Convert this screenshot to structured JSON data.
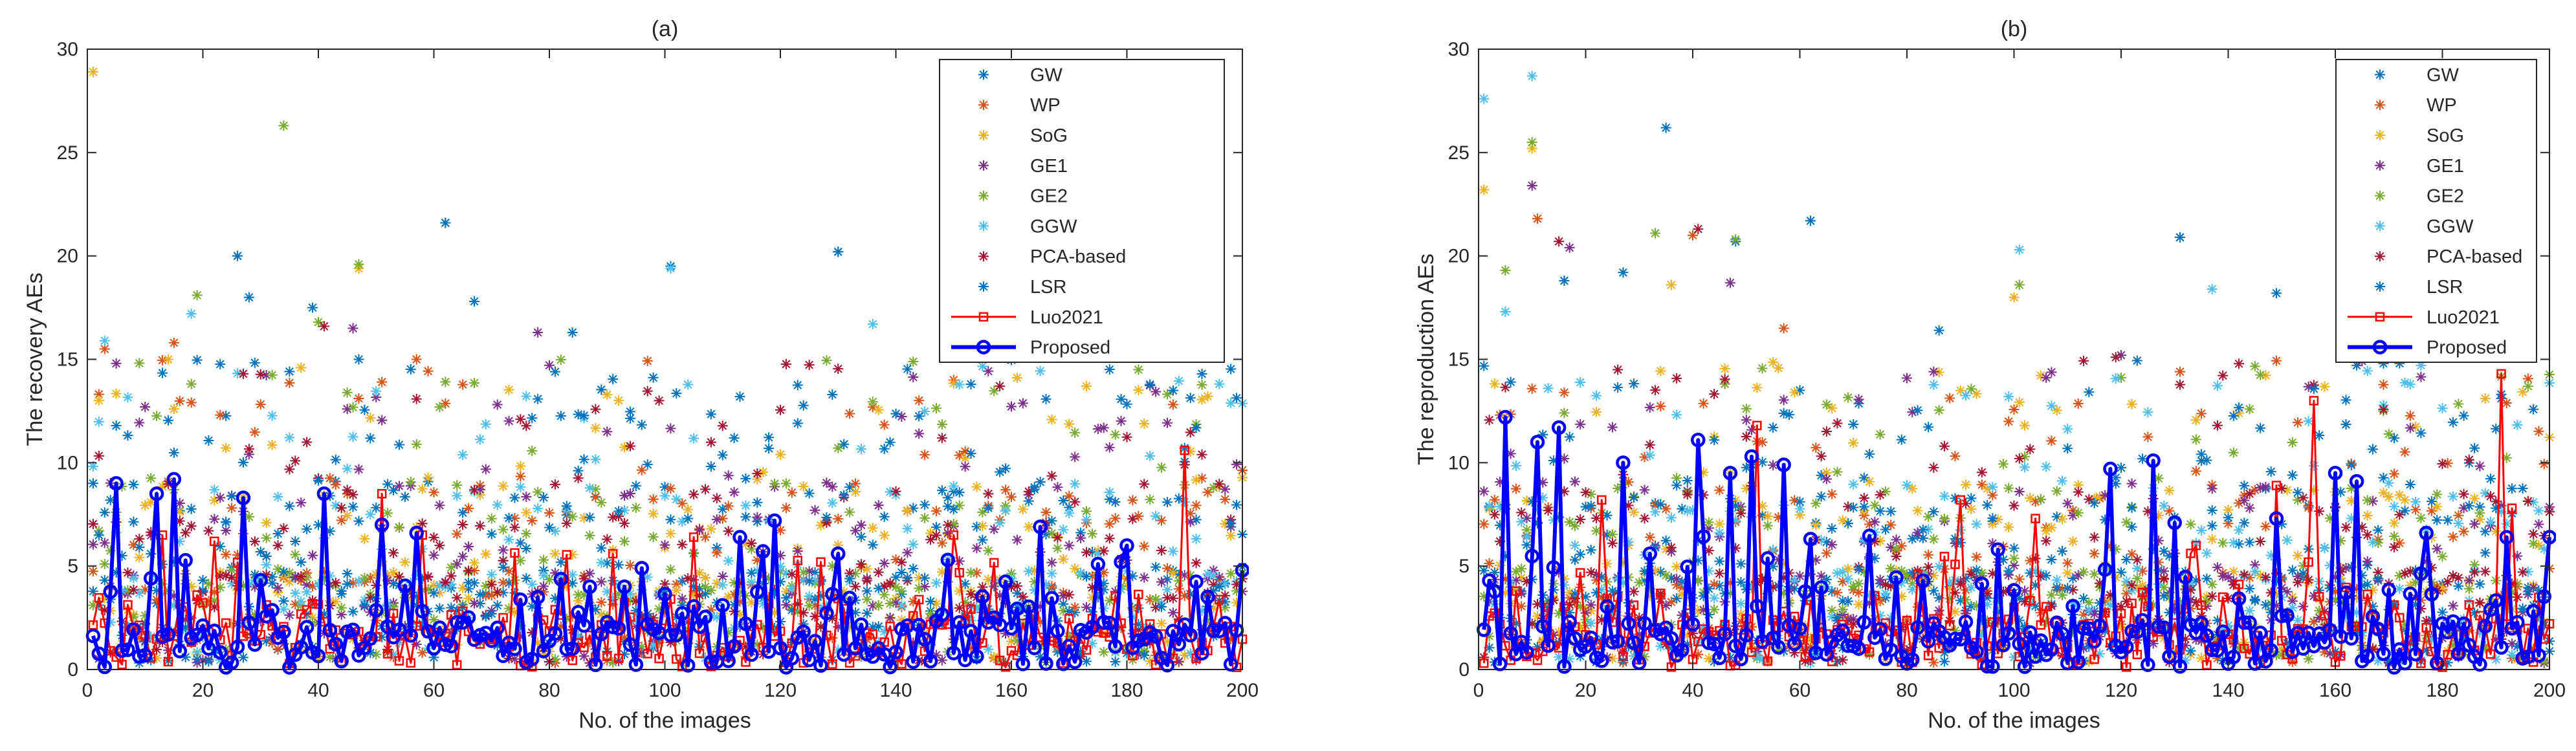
{
  "chart_data": [
    {
      "type": "scatter",
      "title": "(a)",
      "xlabel": "No. of the images",
      "ylabel": "The recovery AEs",
      "xlim": [
        0,
        200
      ],
      "ylim": [
        0,
        30
      ],
      "xticks": [
        0,
        20,
        40,
        60,
        80,
        100,
        120,
        140,
        160,
        180,
        200
      ],
      "yticks": [
        0,
        5,
        10,
        15,
        20,
        25,
        30
      ],
      "legend_position": "top-right",
      "scatter_series": [
        {
          "name": "GW",
          "color": "#0072BD",
          "peaks": [
            [
              26,
              20.0
            ],
            [
              62,
              21.6
            ],
            [
              130,
              20.2
            ],
            [
              101,
              19.5
            ],
            [
              39,
              17.5
            ],
            [
              67,
              17.8
            ],
            [
              28,
              18.0
            ],
            [
              84,
              16.3
            ]
          ]
        },
        {
          "name": "WP",
          "color": "#D95319",
          "peaks": [
            [
              15,
              15.8
            ],
            [
              57,
              15.0
            ],
            [
              3,
              15.5
            ],
            [
              150,
              14.0
            ]
          ]
        },
        {
          "name": "SoG",
          "color": "#EDB120",
          "peaks": [
            [
              1,
              28.9
            ],
            [
              47,
              19.4
            ],
            [
              14,
              15.0
            ]
          ]
        },
        {
          "name": "GE1",
          "color": "#7E2F8E",
          "peaks": [
            [
              46,
              16.5
            ],
            [
              78,
              16.3
            ],
            [
              5,
              14.8
            ]
          ]
        },
        {
          "name": "GE2",
          "color": "#77AC30",
          "peaks": [
            [
              34,
              26.3
            ],
            [
              47,
              19.6
            ],
            [
              19,
              18.1
            ],
            [
              40,
              16.8
            ]
          ]
        },
        {
          "name": "GGW",
          "color": "#4DBEEE",
          "peaks": [
            [
              101,
              19.4
            ],
            [
              18,
              17.2
            ],
            [
              136,
              16.7
            ],
            [
              3,
              15.9
            ]
          ]
        },
        {
          "name": "PCA-based",
          "color": "#A2142F",
          "peaks": [
            [
              41,
              16.6
            ],
            [
              27,
              14.3
            ],
            [
              99,
              13.0
            ]
          ]
        },
        {
          "name": "LSR",
          "color": "#0072BD",
          "peaks": [
            [
              26,
              20.0
            ],
            [
              62,
              21.6
            ],
            [
              130,
              20.2
            ],
            [
              81,
              14.4
            ]
          ]
        }
      ],
      "line_series": [
        {
          "name": "Luo2021",
          "color": "#FF0000",
          "marker": "square",
          "peaks": [
            [
              190,
              10.6
            ],
            [
              22,
              6.2
            ],
            [
              51,
              8.5
            ],
            [
              91,
              5.6
            ],
            [
              105,
              6.4
            ],
            [
              150,
              6.5
            ],
            [
              58,
              6.5
            ],
            [
              13,
              6.5
            ],
            [
              127,
              5.2
            ]
          ]
        },
        {
          "name": "Proposed",
          "color": "#0000FF",
          "marker": "circle",
          "peaks": [
            [
              5,
              9.0
            ],
            [
              12,
              8.5
            ],
            [
              15,
              9.2
            ],
            [
              27,
              8.3
            ],
            [
              41,
              8.5
            ],
            [
              51,
              7.0
            ],
            [
              57,
              6.6
            ],
            [
              119,
              7.2
            ],
            [
              113,
              6.4
            ],
            [
              165,
              6.9
            ],
            [
              130,
              5.6
            ],
            [
              149,
              5.3
            ],
            [
              200,
              4.8
            ],
            [
              78,
              3.5
            ],
            [
              96,
              4.9
            ],
            [
              175,
              5.1
            ],
            [
              179,
              5.2
            ]
          ]
        }
      ]
    },
    {
      "type": "scatter",
      "title": "(b)",
      "xlabel": "No. of the images",
      "ylabel": "The reproduction AEs",
      "xlim": [
        0,
        200
      ],
      "ylim": [
        0,
        30
      ],
      "xticks": [
        0,
        20,
        40,
        60,
        80,
        100,
        120,
        140,
        160,
        180,
        200
      ],
      "yticks": [
        0,
        5,
        10,
        15,
        20,
        25,
        30
      ],
      "legend_position": "top-right",
      "scatter_series": [
        {
          "name": "GW",
          "color": "#0072BD",
          "peaks": [
            [
              62,
              21.7
            ],
            [
              131,
              20.9
            ],
            [
              27,
              19.2
            ],
            [
              48,
              20.7
            ],
            [
              35,
              26.2
            ],
            [
              149,
              18.2
            ],
            [
              16,
              18.8
            ]
          ]
        },
        {
          "name": "WP",
          "color": "#D95319",
          "peaks": [
            [
              11,
              21.8
            ],
            [
              40,
              21.0
            ],
            [
              190,
              15.8
            ],
            [
              57,
              16.5
            ]
          ]
        },
        {
          "name": "SoG",
          "color": "#EDB120",
          "peaks": [
            [
              1,
              23.2
            ],
            [
              10,
              25.2
            ],
            [
              36,
              18.6
            ],
            [
              100,
              18.0
            ]
          ]
        },
        {
          "name": "GE1",
          "color": "#7E2F8E",
          "peaks": [
            [
              10,
              23.4
            ],
            [
              17,
              20.4
            ],
            [
              47,
              18.7
            ],
            [
              120,
              15.2
            ]
          ]
        },
        {
          "name": "GE2",
          "color": "#77AC30",
          "peaks": [
            [
              10,
              25.5
            ],
            [
              5,
              19.3
            ],
            [
              33,
              21.1
            ],
            [
              48,
              20.8
            ],
            [
              101,
              18.6
            ]
          ]
        },
        {
          "name": "GGW",
          "color": "#4DBEEE",
          "peaks": [
            [
              10,
              28.7
            ],
            [
              1,
              27.6
            ],
            [
              101,
              20.3
            ],
            [
              5,
              17.3
            ],
            [
              137,
              18.4
            ]
          ]
        },
        {
          "name": "PCA-based",
          "color": "#A2142F",
          "peaks": [
            [
              15,
              20.7
            ],
            [
              41,
              21.3
            ],
            [
              119,
              15.1
            ],
            [
              26,
              14.5
            ]
          ]
        },
        {
          "name": "LSR",
          "color": "#0072BD",
          "peaks": [
            [
              62,
              21.7
            ],
            [
              131,
              20.9
            ],
            [
              16,
              18.8
            ],
            [
              86,
              16.4
            ],
            [
              169,
              14.8
            ]
          ]
        }
      ],
      "line_series": [
        {
          "name": "Luo2021",
          "color": "#FF0000",
          "marker": "square",
          "peaks": [
            [
              156,
              13.0
            ],
            [
              191,
              14.3
            ],
            [
              193,
              7.8
            ],
            [
              23,
              8.2
            ],
            [
              52,
              11.8
            ],
            [
              90,
              8.2
            ],
            [
              104,
              7.3
            ],
            [
              149,
              8.9
            ],
            [
              134,
              6.0
            ]
          ]
        },
        {
          "name": "Proposed",
          "color": "#0000FF",
          "marker": "circle",
          "peaks": [
            [
              5,
              12.2
            ],
            [
              11,
              11.0
            ],
            [
              15,
              11.7
            ],
            [
              27,
              10.0
            ],
            [
              41,
              11.1
            ],
            [
              47,
              9.5
            ],
            [
              51,
              10.3
            ],
            [
              57,
              9.9
            ],
            [
              118,
              9.7
            ],
            [
              126,
              10.1
            ],
            [
              160,
              9.5
            ],
            [
              164,
              9.1
            ],
            [
              177,
              6.6
            ],
            [
              130,
              7.1
            ],
            [
              149,
              7.3
            ],
            [
              200,
              6.4
            ],
            [
              32,
              5.6
            ],
            [
              97,
              5.8
            ]
          ]
        }
      ]
    }
  ]
}
